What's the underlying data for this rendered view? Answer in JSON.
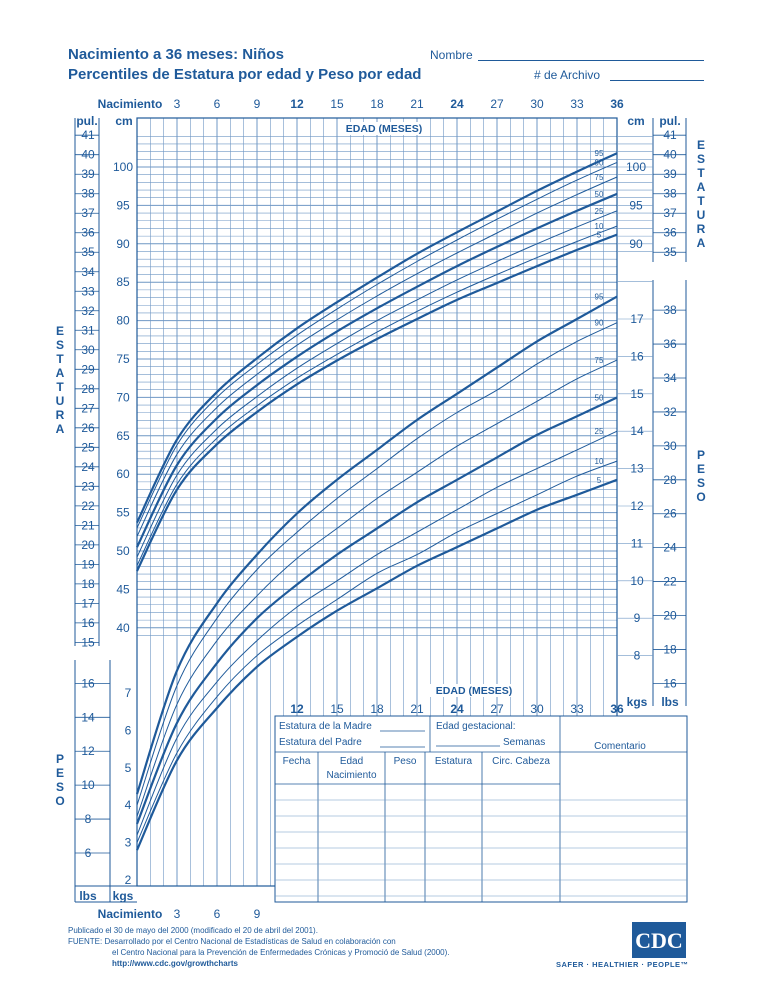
{
  "header": {
    "title_line1": "Nacimiento a 36 meses:  Niños",
    "title_line2": "Percentiles de Estatura por edad y Peso por edad",
    "name_label": "Nombre",
    "file_label": "# de Archivo"
  },
  "side_labels": {
    "estatura_letters": [
      "E",
      "S",
      "T",
      "A",
      "T",
      "U",
      "R",
      "A"
    ],
    "peso_letters": [
      "P",
      "E",
      "S",
      "O"
    ]
  },
  "axis": {
    "top_age_ticks": [
      "Nacimiento",
      "3",
      "6",
      "9",
      "12",
      "15",
      "18",
      "21",
      "24",
      "27",
      "30",
      "33",
      "36"
    ],
    "bottom_age_ticks": [
      "Nacimiento",
      "3",
      "6",
      "9"
    ],
    "inner_age_ticks": [
      "12",
      "15",
      "18",
      "21",
      "24",
      "27",
      "30",
      "33",
      "36"
    ],
    "age_label": "EDAD (MESES)",
    "pul": "pul.",
    "cm": "cm",
    "lbs": "lbs",
    "kgs": "kgs",
    "left_in_ticks": [
      "41",
      "40",
      "39",
      "38",
      "37",
      "36",
      "35",
      "34",
      "33",
      "32",
      "31",
      "30",
      "29",
      "28",
      "27",
      "26",
      "25",
      "24",
      "23",
      "22",
      "21",
      "20",
      "19",
      "18",
      "17",
      "16",
      "15"
    ],
    "left_cm_ticks": [
      "100",
      "95",
      "90",
      "85",
      "80",
      "75",
      "70",
      "65",
      "60",
      "55",
      "50",
      "45",
      "40"
    ],
    "left_lb_ticks": [
      "16",
      "14",
      "12",
      "10",
      "8",
      "6"
    ],
    "left_kg_ticks": [
      "7",
      "6",
      "5",
      "4",
      "3",
      "2"
    ],
    "right_cm_ticks": [
      "100",
      "95",
      "90"
    ],
    "right_in_ticks": [
      "41",
      "40",
      "39",
      "38",
      "37",
      "36",
      "35"
    ],
    "right_kg_ticks": [
      "17",
      "16",
      "15",
      "14",
      "13",
      "12",
      "11",
      "10",
      "9",
      "8"
    ],
    "right_lb_ticks": [
      "38",
      "36",
      "34",
      "32",
      "30",
      "28",
      "26",
      "24",
      "22",
      "20",
      "18",
      "16"
    ]
  },
  "info_table": {
    "mother_height": "Estatura de la Madre",
    "father_height": "Estatura del Padre",
    "gest_age": "Edad gestacional:",
    "weeks": "Semanas",
    "comment": "Comentario",
    "col_date": "Fecha",
    "col_age": "Edad",
    "col_birth": "Nacimiento",
    "col_weight": "Peso",
    "col_height": "Estatura",
    "col_head": "Circ. Cabeza"
  },
  "footer": {
    "line1": "Publicado el 30 de mayo del 2000 (modificado el 20 de abril del 2001).",
    "line2": "FUENTE: Desarrollado por el Centro Nacional de Estadísticas de Salud en colaboración con",
    "line3": "el Centro Nacional para la Prevención de Enfermedades Crónicas y Promoció de Salud (2000).",
    "line4": "http://www.cdc.gov/growthcharts",
    "logo": "CDC",
    "tagline": "SAFER · HEALTHIER · PEOPLE™"
  },
  "colors": {
    "primary": "#1f5a9a",
    "grid": "#6f97c4"
  },
  "chart_data": [
    {
      "type": "line",
      "title": "Estatura por edad",
      "xlabel": "EDAD (MESES)",
      "ylabel": "cm",
      "xlim": [
        0,
        36
      ],
      "ylim": [
        38,
        104
      ],
      "x": [
        0,
        3,
        6,
        9,
        12,
        15,
        18,
        21,
        24,
        27,
        30,
        33,
        36
      ],
      "series": [
        {
          "name": "95",
          "values": [
            53.7,
            64.5,
            70.7,
            75.1,
            79.0,
            82.4,
            85.6,
            88.7,
            91.5,
            94.2,
            96.9,
            99.4,
            101.8
          ]
        },
        {
          "name": "90",
          "values": [
            53.0,
            63.8,
            70.0,
            74.3,
            78.1,
            81.5,
            84.7,
            87.7,
            90.5,
            93.2,
            95.8,
            98.3,
            100.6
          ]
        },
        {
          "name": "75",
          "values": [
            51.9,
            62.6,
            68.7,
            73.0,
            76.8,
            80.1,
            83.2,
            86.1,
            88.8,
            91.4,
            94.0,
            96.4,
            98.7
          ]
        },
        {
          "name": "50",
          "values": [
            50.5,
            61.2,
            67.3,
            71.6,
            75.3,
            78.6,
            81.6,
            84.4,
            87.1,
            89.6,
            92.0,
            94.3,
            96.5
          ]
        },
        {
          "name": "25",
          "values": [
            49.2,
            59.9,
            65.9,
            70.1,
            73.8,
            77.0,
            80.0,
            82.7,
            85.3,
            87.7,
            90.0,
            92.2,
            94.3
          ]
        },
        {
          "name": "10",
          "values": [
            48.1,
            58.7,
            64.7,
            68.9,
            72.5,
            75.6,
            78.5,
            81.2,
            83.7,
            86.0,
            88.2,
            90.3,
            92.3
          ]
        },
        {
          "name": "5",
          "values": [
            47.4,
            58.0,
            63.9,
            68.1,
            71.7,
            74.8,
            77.6,
            80.2,
            82.7,
            84.9,
            87.1,
            89.2,
            91.2
          ]
        }
      ]
    },
    {
      "type": "line",
      "title": "Peso por edad",
      "xlabel": "EDAD (MESES)",
      "ylabel": "kgs",
      "xlim": [
        0,
        36
      ],
      "ylim": [
        1.4,
        18.2
      ],
      "x": [
        0,
        3,
        6,
        9,
        12,
        15,
        18,
        21,
        24,
        27,
        30,
        33,
        36
      ],
      "series": [
        {
          "name": "95",
          "values": [
            4.3,
            7.6,
            9.4,
            10.7,
            11.8,
            12.7,
            13.5,
            14.3,
            15.0,
            15.7,
            16.4,
            17.0,
            17.6
          ]
        },
        {
          "name": "90",
          "values": [
            4.0,
            7.2,
            9.0,
            10.3,
            11.3,
            12.2,
            13.0,
            13.8,
            14.5,
            15.1,
            15.8,
            16.4,
            16.9
          ]
        },
        {
          "name": "75",
          "values": [
            3.7,
            6.7,
            8.4,
            9.6,
            10.6,
            11.4,
            12.2,
            12.9,
            13.6,
            14.2,
            14.8,
            15.4,
            15.9
          ]
        },
        {
          "name": "50",
          "values": [
            3.5,
            6.2,
            7.8,
            9.0,
            9.9,
            10.7,
            11.4,
            12.1,
            12.7,
            13.3,
            13.9,
            14.4,
            14.9
          ]
        },
        {
          "name": "25",
          "values": [
            3.2,
            5.8,
            7.3,
            8.4,
            9.3,
            10.0,
            10.7,
            11.3,
            11.9,
            12.5,
            13.0,
            13.5,
            14.0
          ]
        },
        {
          "name": "10",
          "values": [
            3.0,
            5.4,
            6.9,
            8.0,
            8.8,
            9.5,
            10.2,
            10.7,
            11.3,
            11.8,
            12.3,
            12.8,
            13.2
          ]
        },
        {
          "name": "5",
          "values": [
            2.8,
            5.2,
            6.6,
            7.7,
            8.5,
            9.2,
            9.8,
            10.4,
            10.9,
            11.4,
            11.9,
            12.3,
            12.7
          ]
        }
      ]
    }
  ]
}
